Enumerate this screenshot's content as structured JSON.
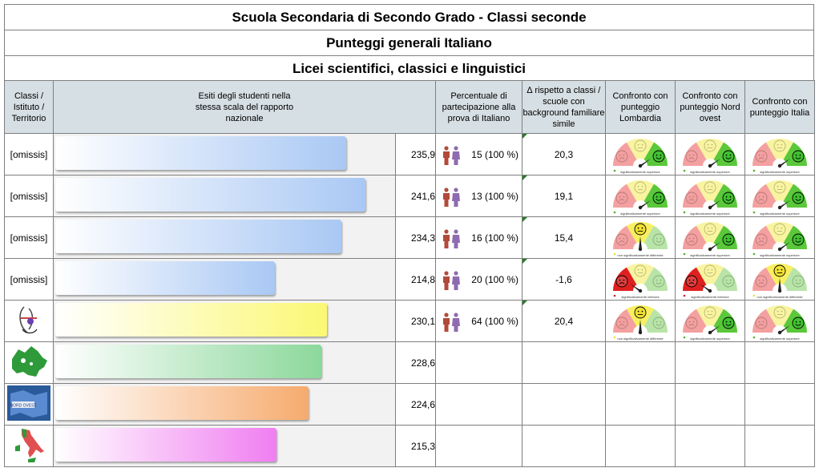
{
  "titles": {
    "line1": "Scuola Secondaria di Secondo Grado - Classi seconde",
    "line2": "Punteggi generali Italiano",
    "line3": "Licei scientifici, classici e linguistici"
  },
  "headers": {
    "classi": "Classi / Istituto / Territorio",
    "esiti": "Esiti degli studenti nella stessa scala del rapporto nazionale",
    "percentuale": "Percentuale di partecipazione alla prova di Italiano",
    "delta": "∆ rispetto a classi / scuole con background familiare simile",
    "lombardia": "Confronto con punteggio Lombardia",
    "nordovest": "Confronto con punteggio Nord ovest",
    "italia": "Confronto con punteggio Italia"
  },
  "colors": {
    "blue": "#a9c8f4",
    "yellow": "#fbf874",
    "green": "#8cd89c",
    "orange": "#f6ab6e",
    "pink": "#f07ef1"
  },
  "rows": [
    {
      "name": "[omissis]",
      "score": "235,9",
      "value": 235.9,
      "participation": "15 (100 %)",
      "delta": "20,3",
      "color": "blue",
      "gauges": [
        {
          "state": "superiore",
          "label": "significativamente superiore"
        },
        {
          "state": "superiore",
          "label": "significativamente superiore"
        },
        {
          "state": "superiore",
          "label": "significativamente superiore"
        }
      ]
    },
    {
      "name": "[omissis]",
      "score": "241,6",
      "value": 241.6,
      "participation": "13 (100 %)",
      "delta": "19,1",
      "color": "blue",
      "gauges": [
        {
          "state": "superiore",
          "label": "significativamente superiore"
        },
        {
          "state": "superiore",
          "label": "significativamente superiore"
        },
        {
          "state": "superiore",
          "label": "significativamente superiore"
        }
      ]
    },
    {
      "name": "[omissis]",
      "score": "234,3",
      "value": 234.3,
      "participation": "16 (100 %)",
      "delta": "15,4",
      "color": "blue",
      "gauges": [
        {
          "state": "non",
          "label": "non significativamente differente"
        },
        {
          "state": "superiore",
          "label": "significativamente superiore"
        },
        {
          "state": "superiore",
          "label": "significativamente superiore"
        }
      ]
    },
    {
      "name": "[omissis]",
      "score": "214,8",
      "value": 214.8,
      "participation": "20 (100 %)",
      "delta": "-1,6",
      "color": "blue",
      "gauges": [
        {
          "state": "inferiore",
          "label": "significativamente inferiore"
        },
        {
          "state": "inferiore",
          "label": "significativamente inferiore"
        },
        {
          "state": "non",
          "label": "non significativamente differente"
        }
      ]
    },
    {
      "name": "",
      "icon": "school-logo-icon",
      "score": "230,1",
      "value": 230.1,
      "participation": "64 (100 %)",
      "delta": "20,4",
      "color": "yellow",
      "gauges": [
        {
          "state": "non",
          "label": "non significativamente differente"
        },
        {
          "state": "superiore",
          "label": "significativamente superiore"
        },
        {
          "state": "superiore",
          "label": "significativamente superiore"
        }
      ]
    },
    {
      "name": "",
      "icon": "lombardia-map-icon",
      "score": "228,6",
      "value": 228.6,
      "color": "green"
    },
    {
      "name": "",
      "icon": "nord-ovest-map-icon",
      "score": "224,6",
      "value": 224.6,
      "color": "orange"
    },
    {
      "name": "",
      "icon": "italia-map-icon",
      "score": "215,3",
      "value": 215.3,
      "color": "pink"
    }
  ]
}
